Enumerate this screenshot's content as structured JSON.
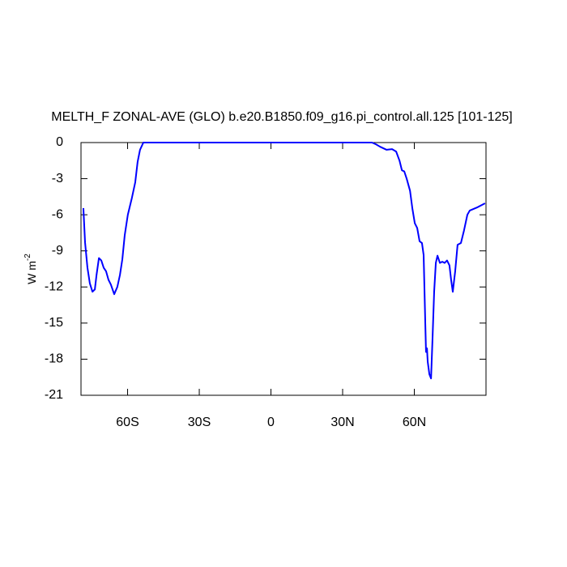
{
  "chart_data": {
    "type": "line",
    "title": "MELTH_F ZONAL-AVE (GLO) b.e20.B1850.f09_g16.pi_control.all.125 [101-125]",
    "ylabel": "W m",
    "ylabel_sup": "-2",
    "x": [
      -78.5,
      -77.8,
      -76.8,
      -75.8,
      -74.7,
      -73.7,
      -73,
      -72,
      -71,
      -70,
      -69,
      -68,
      -67,
      -65.6,
      -64.3,
      -63.2,
      -62.2,
      -61.2,
      -59.9,
      -58.2,
      -56.8,
      -55.8,
      -54.8,
      -53.4,
      42.3,
      44,
      45.7,
      48.4,
      50.7,
      52.4,
      53.8,
      54.8,
      55.8,
      56.8,
      58.2,
      59.2,
      60.2,
      61.2,
      62.2,
      63.2,
      63.9,
      64.6,
      64.9,
      65.3,
      65.6,
      66.3,
      67,
      67.6,
      68.3,
      69,
      69.7,
      70.7,
      71.7,
      72.7,
      73.7,
      74.7,
      75.4,
      76.1,
      77.1,
      78.1,
      79.5,
      80.8,
      82.2,
      83.2,
      86.2,
      89.6
    ],
    "series": [
      {
        "color": "#0000ff",
        "values": [
          -5.45,
          -8.3,
          -10.4,
          -11.7,
          -12.4,
          -12.2,
          -11,
          -9.6,
          -9.8,
          -10.4,
          -10.7,
          -11.4,
          -11.8,
          -12.6,
          -12,
          -11,
          -9.7,
          -7.7,
          -6,
          -4.6,
          -3.3,
          -1.6,
          -0.6,
          0,
          0,
          -0.15,
          -0.35,
          -0.6,
          -0.55,
          -0.75,
          -1.5,
          -2.3,
          -2.4,
          -3,
          -4,
          -5.5,
          -6.7,
          -7.1,
          -8.2,
          -8.35,
          -9.35,
          -15.1,
          -17.4,
          -17.1,
          -18.2,
          -19.25,
          -19.6,
          -16.4,
          -12.4,
          -10,
          -9.4,
          -10,
          -9.9,
          -10,
          -9.8,
          -10.2,
          -11.4,
          -12.4,
          -10.7,
          -8.5,
          -8.35,
          -7.3,
          -6,
          -5.65,
          -5.4,
          -5.05
        ]
      }
    ],
    "xlim": [
      -79.5,
      90
    ],
    "xticks": [
      {
        "value": -60,
        "label": "60S"
      },
      {
        "value": -30,
        "label": "30S"
      },
      0,
      {
        "value": 30,
        "label": "30N"
      },
      {
        "value": 60,
        "label": "60N"
      }
    ],
    "ylim": [
      -21,
      0
    ],
    "yticks": [
      0,
      -3,
      -6,
      -9,
      -12,
      -15,
      -18,
      -21
    ]
  }
}
